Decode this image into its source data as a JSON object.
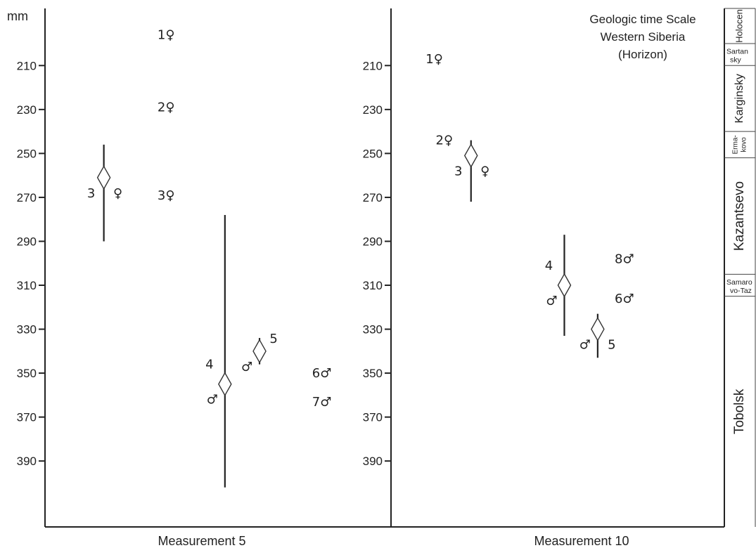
{
  "chart_data": {
    "type": "scatter",
    "ylabel": "mm",
    "yticks": [
      210,
      230,
      250,
      270,
      290,
      310,
      330,
      350,
      370,
      390
    ],
    "ylim": [
      184,
      420
    ],
    "y_inverted": true,
    "panels": [
      {
        "name": "Measurement 5",
        "points": [
          {
            "label": "1",
            "sex": "♀",
            "y": 196,
            "x_rel": 0.35
          },
          {
            "label": "2",
            "sex": "♀",
            "y": 229,
            "x_rel": 0.35
          },
          {
            "label": "3",
            "sex": "♀",
            "y": 269,
            "x_rel": 0.35
          },
          {
            "label": "6",
            "sex": "♂",
            "y": 350,
            "x_rel": 0.8
          },
          {
            "label": "7",
            "sex": "♂",
            "y": 363,
            "x_rel": 0.8
          }
        ],
        "intervals": [
          {
            "label": "3",
            "sex": "♀",
            "mean": 261,
            "min": 246,
            "max": 290,
            "x_rel": 0.17,
            "label_side": "left-below",
            "sex_side": "right-below"
          },
          {
            "label": "4",
            "sex": "♂",
            "mean": 355,
            "min": 278,
            "max": 402,
            "x_rel": 0.52,
            "label_side": "left-above",
            "sex_side": "left-below"
          },
          {
            "label": "5",
            "sex": "♂",
            "mean": 340,
            "min": 334,
            "max": 346,
            "x_rel": 0.62,
            "label_side": "right-above",
            "sex_side": "left-below"
          }
        ]
      },
      {
        "name": "Measurement 10",
        "points": [
          {
            "label": "1",
            "sex": "♀",
            "y": 207,
            "x_rel": 0.13
          },
          {
            "label": "2",
            "sex": "♀",
            "y": 244,
            "x_rel": 0.16
          },
          {
            "label": "8",
            "sex": "♂",
            "y": 298,
            "x_rel": 0.7
          },
          {
            "label": "6",
            "sex": "♂",
            "y": 316,
            "x_rel": 0.7
          }
        ],
        "intervals": [
          {
            "label": "3",
            "sex": "♀",
            "mean": 251,
            "min": 244,
            "max": 272,
            "x_rel": 0.24,
            "label_side": "left-below",
            "sex_side": "right-below"
          },
          {
            "label": "4",
            "sex": "♂",
            "mean": 310,
            "min": 287,
            "max": 333,
            "x_rel": 0.52,
            "label_side": "left-above",
            "sex_side": "left-below"
          },
          {
            "label": "5",
            "sex": "♂",
            "mean": 330,
            "min": 323,
            "max": 343,
            "x_rel": 0.62,
            "label_side": "right-below",
            "sex_side": "left-below"
          }
        ]
      }
    ],
    "time_scale": {
      "title_lines": [
        "Geologic time Scale",
        "Western Siberia",
        "(Horizon)"
      ],
      "epochs": [
        {
          "lines": [
            "Holocen"
          ],
          "top": 184,
          "bottom": 200
        },
        {
          "lines": [
            "Sartan",
            "sky"
          ],
          "top": 200,
          "bottom": 210
        },
        {
          "lines": [
            "Karginsky"
          ],
          "top": 210,
          "bottom": 240
        },
        {
          "lines": [
            "Erma-",
            "kovo"
          ],
          "top": 240,
          "bottom": 252
        },
        {
          "lines": [
            "Kazantsevo"
          ],
          "top": 252,
          "bottom": 305
        },
        {
          "lines": [
            "Samaro",
            "vo-Taz"
          ],
          "top": 305,
          "bottom": 315
        },
        {
          "lines": [
            "Tobolsk"
          ],
          "top": 315,
          "bottom": 420
        }
      ]
    }
  }
}
